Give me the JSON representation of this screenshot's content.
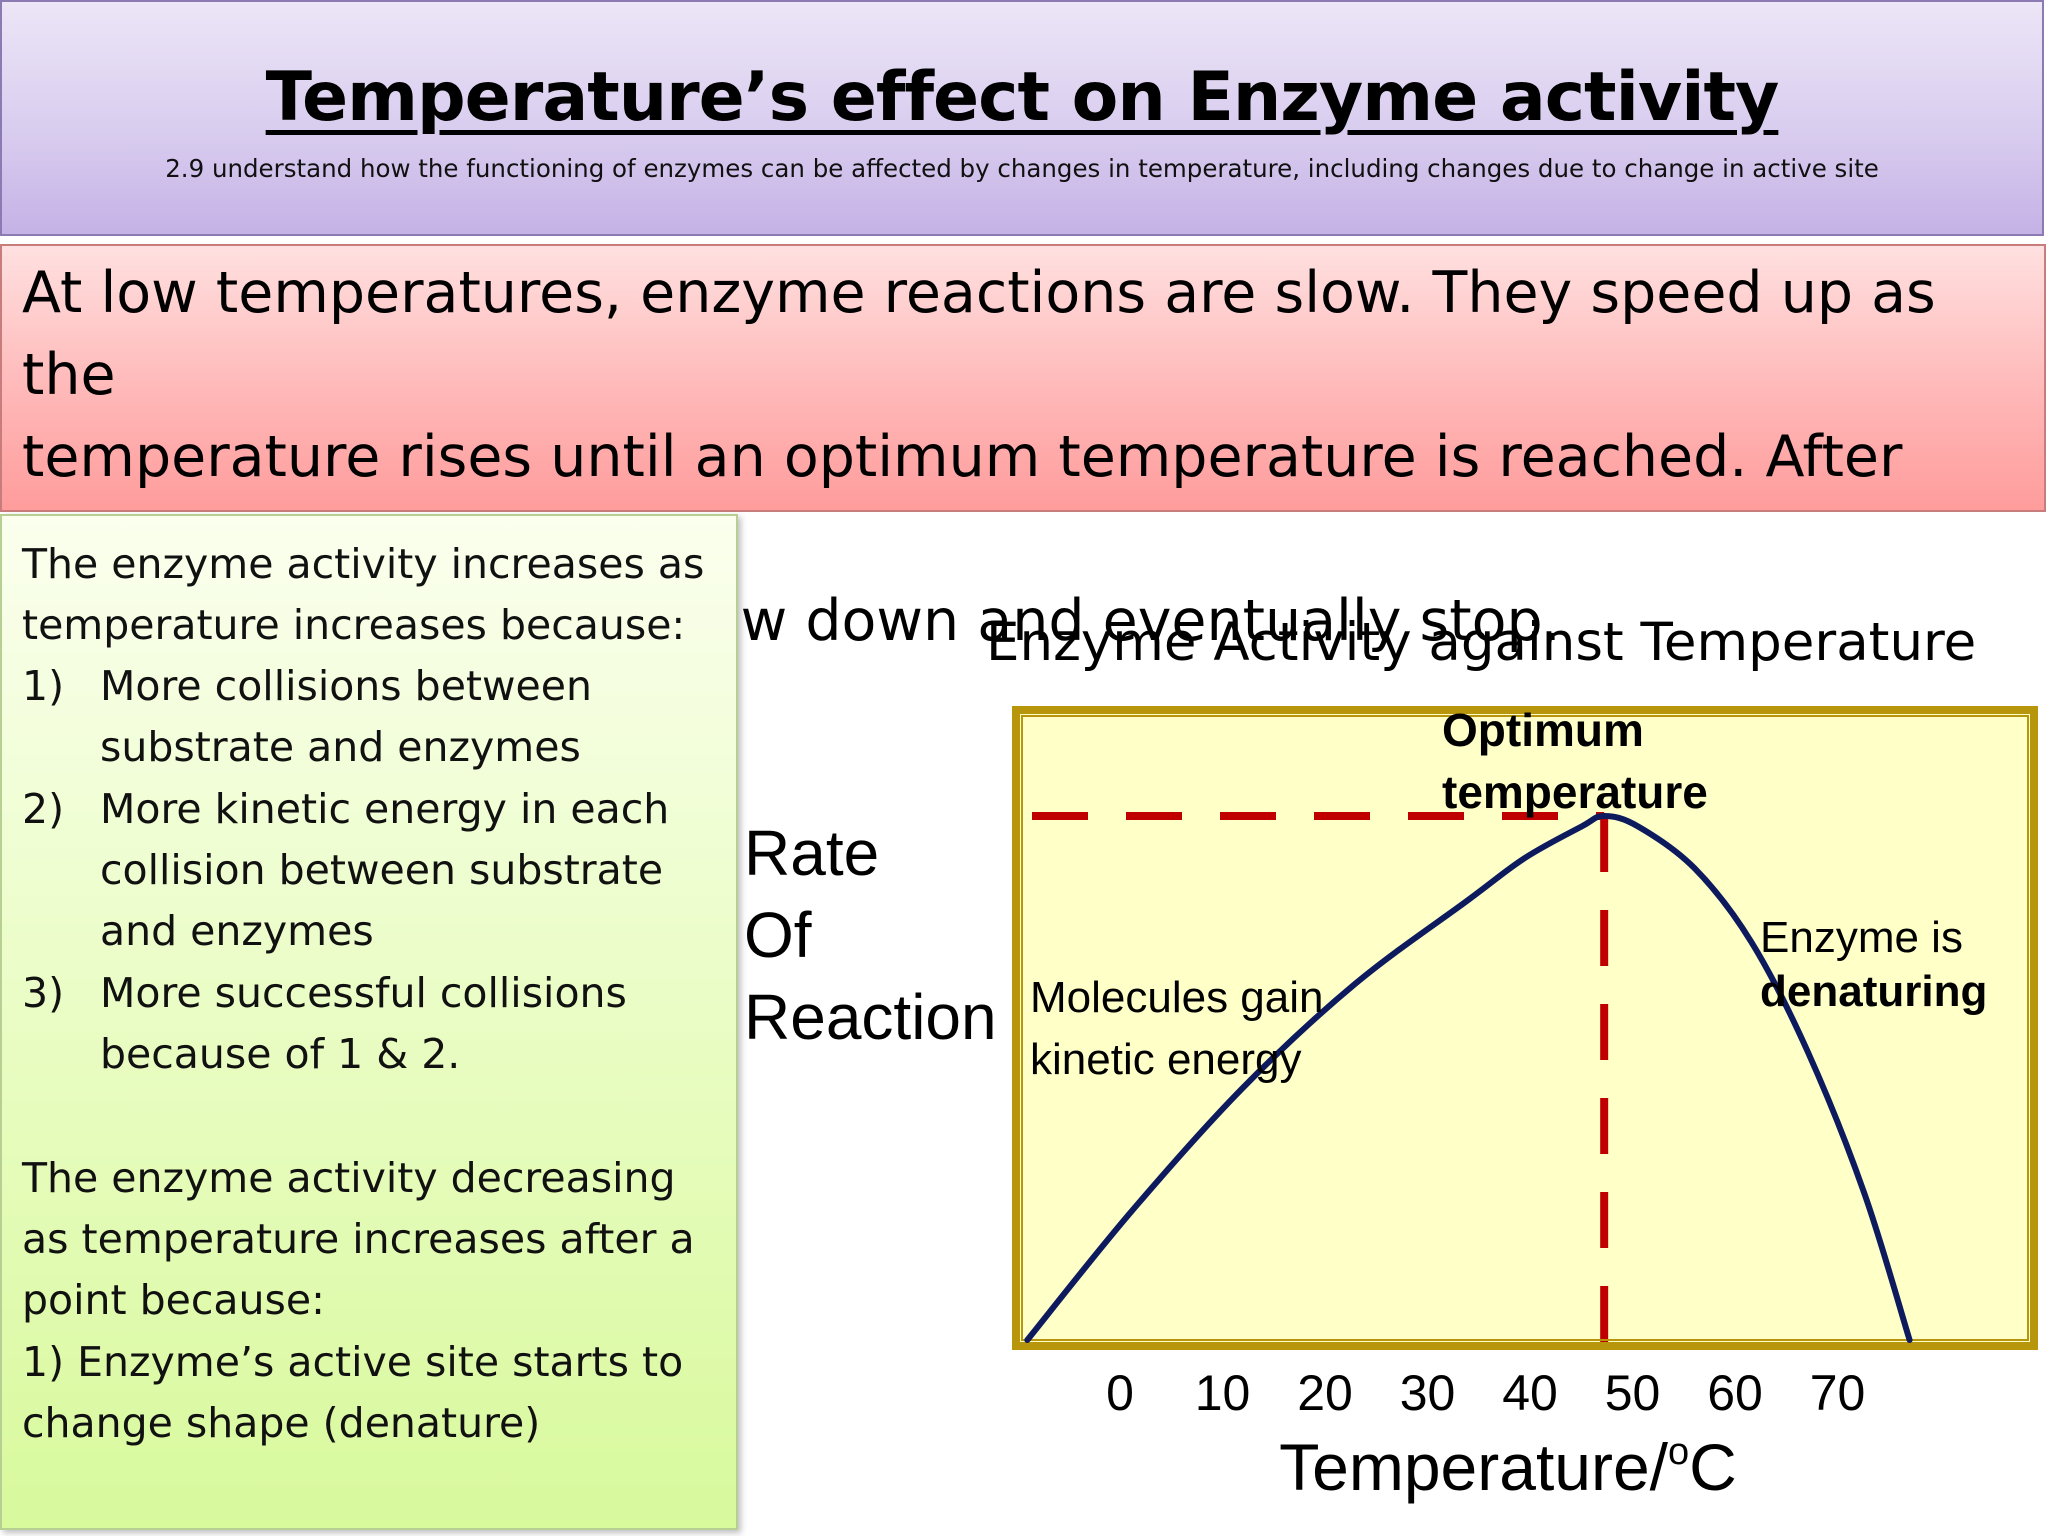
{
  "header": {
    "title": "Temperature’s effect on Enzyme activity",
    "subtitle": "2.9 understand how the functioning of enzymes can be affected by changes in temperature, including changes due to change in active site"
  },
  "summary": {
    "lines": [
      "At low temperatures, enzyme reactions are slow. They speed up as the",
      "temperature rises until an optimum temperature is reached. After this",
      "point the reaction will slow down and eventually stop."
    ]
  },
  "explanation": {
    "increase_intro": [
      "The enzyme activity increases as",
      "temperature increases because:"
    ],
    "increase_points": [
      {
        "num": "1)",
        "lines": [
          "More collisions between",
          "substrate and enzymes"
        ]
      },
      {
        "num": "2)",
        "lines": [
          "More kinetic energy in each",
          "collision between substrate",
          "and enzymes"
        ]
      },
      {
        "num": "3)",
        "lines": [
          "More successful collisions",
          "because of 1 & 2."
        ]
      }
    ],
    "decrease_intro": [
      "The enzyme activity decreasing",
      "as temperature increases after a",
      "point because:"
    ],
    "decrease_points": [
      "1) Enzyme’s active site starts to",
      "change shape (denature)"
    ]
  },
  "chart_data": {
    "type": "line",
    "title": "Enzyme Activity against Temperature",
    "ylabel": "Rate Of Reaction",
    "ylabel_lines": [
      "Rate",
      "Of",
      "Reaction"
    ],
    "xlabel_main": "Temperature/",
    "xlabel_sup": "o",
    "xlabel_unit": "C",
    "x_ticks": [
      0,
      10,
      20,
      30,
      40,
      50,
      60,
      70
    ],
    "xlim": [
      -10,
      80
    ],
    "ylim": [
      0,
      1
    ],
    "y_axis_numeric_labels": false,
    "series": [
      {
        "x": [
          -9,
          0,
          10,
          20,
          30,
          35,
          40,
          42,
          45,
          50,
          55,
          60,
          65,
          69
        ],
        "y": [
          0,
          0.24,
          0.48,
          0.68,
          0.84,
          0.92,
          0.98,
          1.0,
          0.98,
          0.9,
          0.76,
          0.55,
          0.28,
          0.0
        ]
      }
    ],
    "optimum": {
      "x": 42,
      "y": 1.0
    },
    "annotations": {
      "optimum_lines": [
        "Optimum",
        "temperature"
      ],
      "rising_lines": [
        "Molecules gain",
        "kinetic energy"
      ],
      "falling_line1": "Enzyme is",
      "falling_line2": "denaturing"
    },
    "colors": {
      "plot_background": "#ffffc8",
      "frame": "#b8960c",
      "curve": "#0d1b5e",
      "guide_lines": "#c00000"
    },
    "grid": false,
    "legend": "none"
  }
}
